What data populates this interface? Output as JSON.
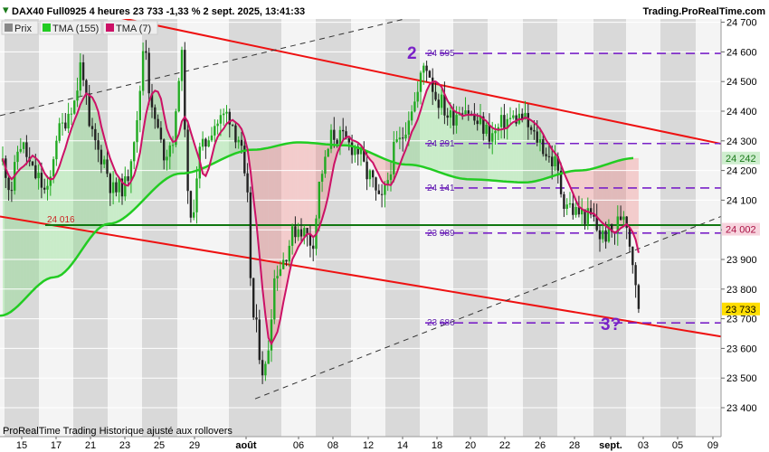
{
  "header": {
    "title": "DAX40 Full0925 4 heures 23 733 -1,33 % 2 sept. 2025, 13:41:33",
    "brand": "Trading.ProRealTime.com"
  },
  "legend": [
    {
      "label": "Prix",
      "color": "#888888"
    },
    {
      "label": "TMA (155)",
      "color": "#22cc22"
    },
    {
      "label": "TMA (7)",
      "color": "#cc1166"
    }
  ],
  "footer": "ProRealTime Trading  Historique ajusté aux rollovers",
  "colors": {
    "up_candle": "#22aa22",
    "down_candle": "#222222",
    "channel": "#ee1111",
    "level": "#7a22c8",
    "support": "#117711"
  },
  "chart_data": {
    "type": "candlestick",
    "ylim": [
      23350,
      24730
    ],
    "y_ticks": [
      23400,
      23500,
      23600,
      23700,
      23800,
      23900,
      24000,
      24100,
      24200,
      24300,
      24400,
      24500,
      24600,
      24700
    ],
    "y_tick_labels": [
      "23 400",
      "23 500",
      "23 600",
      "23 700",
      "23 800",
      "23 900",
      "24 000",
      "24 100",
      "24 200",
      "24 300",
      "24 400",
      "24 500",
      "24 600",
      "24 700"
    ],
    "x_tick_labels": [
      "15",
      "17",
      "21",
      "23",
      "25",
      "29",
      "août",
      "06",
      "08",
      "12",
      "14",
      "18",
      "20",
      "22",
      "26",
      "28",
      "sept.",
      "03",
      "05",
      "09"
    ],
    "last_price": {
      "label": "23 733",
      "value": 23733
    },
    "tma155_last": {
      "label": "24 242",
      "value": 24242
    },
    "tma7_last": {
      "label": "24 002",
      "value": 24002
    },
    "horizontal_levels": [
      {
        "label": "24 595",
        "value": 24595
      },
      {
        "label": "24 291",
        "value": 24291
      },
      {
        "label": "24 141",
        "value": 24141
      },
      {
        "label": "23 989",
        "value": 23989
      },
      {
        "label": "23 686",
        "value": 23686
      }
    ],
    "support_line": {
      "label": "24 016",
      "value": 24016
    },
    "annotations": [
      {
        "text": "2",
        "near_level": 24595
      },
      {
        "text": "3?",
        "near_level": 23686
      }
    ],
    "series": [
      {
        "name": "TMA (155)",
        "trend": "rising from 23710 to 24240 with hump near 24300 in early August"
      },
      {
        "name": "TMA (7)",
        "trend": "smoothed price"
      }
    ]
  }
}
